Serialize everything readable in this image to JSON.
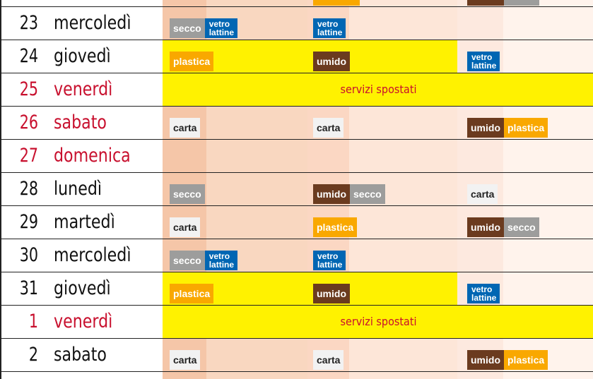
{
  "labels": {
    "secco": "secco",
    "vetro_l1": "vetro",
    "vetro_l2": "lattine",
    "plastica": "plastica",
    "umido": "umido",
    "carta": "carta",
    "moved": "servizi spostati"
  },
  "rows": [
    {
      "num": "23",
      "day": "mercoledì"
    },
    {
      "num": "24",
      "day": "giovedì"
    },
    {
      "num": "25",
      "day": "venerdì"
    },
    {
      "num": "26",
      "day": "sabato"
    },
    {
      "num": "27",
      "day": "domenica"
    },
    {
      "num": "28",
      "day": "lunedì"
    },
    {
      "num": "29",
      "day": "martedì"
    },
    {
      "num": "30",
      "day": "mercoledì"
    },
    {
      "num": "31",
      "day": "giovedì"
    },
    {
      "num": "1",
      "day": "venerdì"
    },
    {
      "num": "2",
      "day": "sabato"
    }
  ],
  "colors": {
    "secco": "#9d9d9c",
    "vetro": "#0066b3",
    "plastica": "#f9a800",
    "umido": "#6b3b1f",
    "carta": "#f2f2f2",
    "highlight": "#fff200",
    "holiday": "#c8102e"
  }
}
